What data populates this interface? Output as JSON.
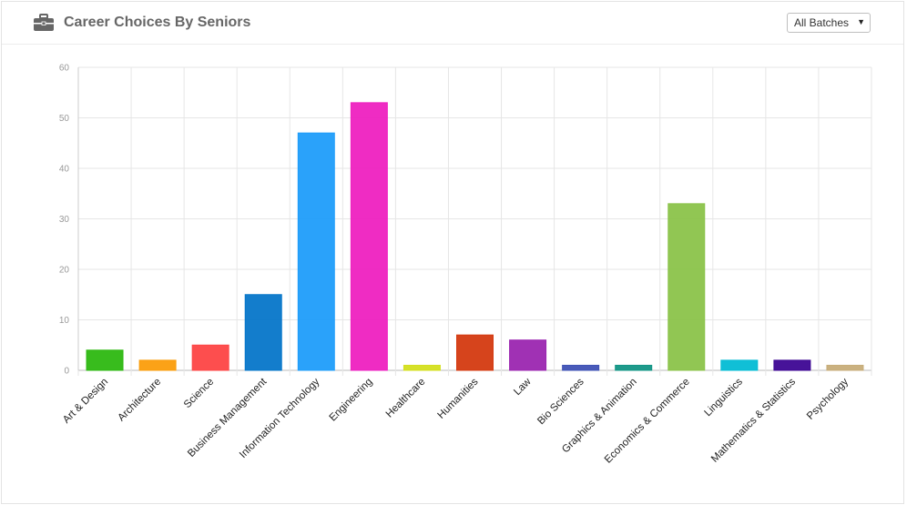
{
  "header": {
    "title": "Career Choices By Seniors",
    "title_icon": "briefcase-icon",
    "batch_select": {
      "selected": "All Batches",
      "icon": "dropdown-arrow-icon"
    }
  },
  "chart_data": {
    "type": "bar",
    "title": "",
    "xlabel": "",
    "ylabel": "",
    "ylim": [
      0,
      60
    ],
    "yticks": [
      0,
      10,
      20,
      30,
      40,
      50,
      60
    ],
    "grid": true,
    "legend": "none",
    "categories": [
      "Art & Design",
      "Architecture",
      "Science",
      "Business Management",
      "Information Technology",
      "Engineering",
      "Healthcare",
      "Humanities",
      "Law",
      "Bio Sciences",
      "Graphics & Animation",
      "Economics & Commerce",
      "Linguistics",
      "Mathematics & Statistics",
      "Psychology"
    ],
    "values": [
      4,
      2,
      5,
      15,
      47,
      53,
      1,
      7,
      6,
      1,
      1,
      33,
      2,
      2,
      1
    ],
    "colors": [
      "#2db811",
      "#fb9d0b",
      "#fd4545",
      "#0676c9",
      "#1f9dfa",
      "#ee21c0",
      "#d4df1e",
      "#d43a10",
      "#9b26b0",
      "#3f51b5",
      "#129585",
      "#8bc34a",
      "#03bcd4",
      "#3d0693",
      "#c7ad79"
    ]
  }
}
